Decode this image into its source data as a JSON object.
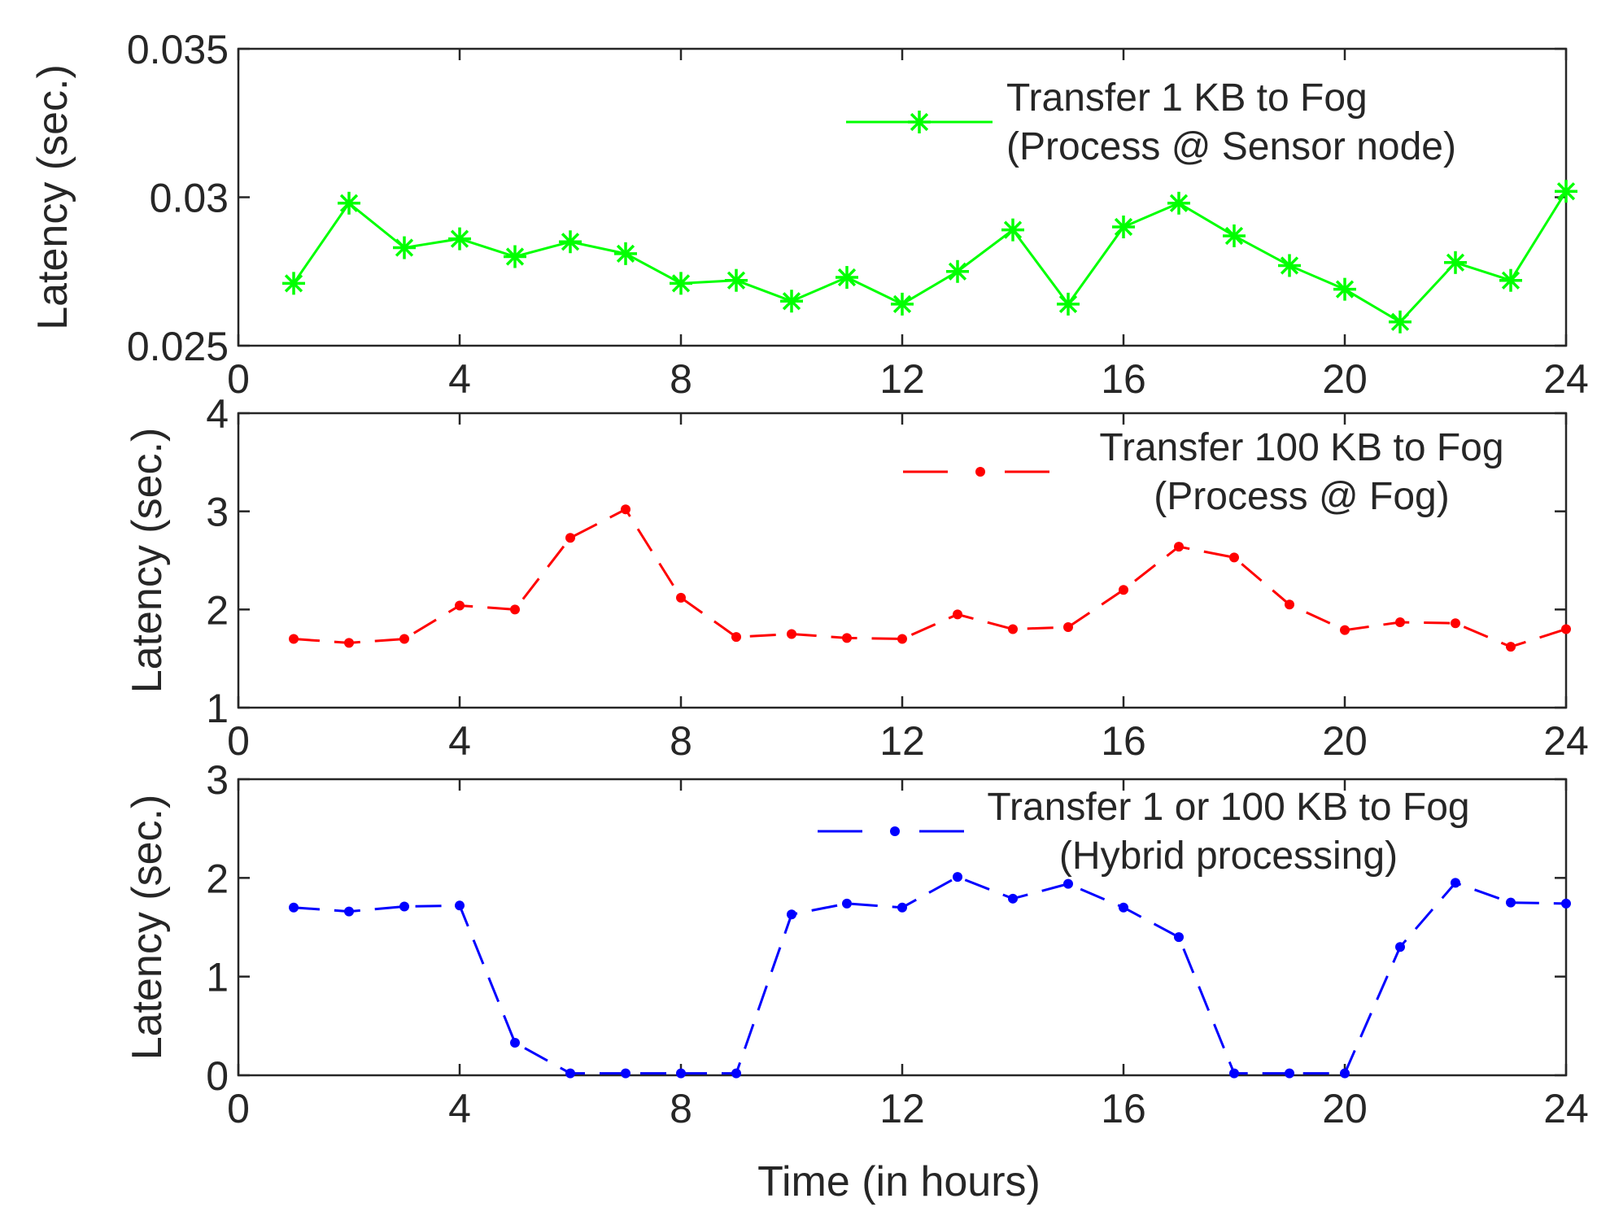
{
  "xlabel": "Time (in hours)",
  "chart_data": [
    {
      "type": "line",
      "ylabel": "Latency (sec.)",
      "xlim": [
        0,
        24
      ],
      "ylim": [
        0.025,
        0.035
      ],
      "xticks": [
        "0",
        "4",
        "8",
        "12",
        "16",
        "20",
        "24"
      ],
      "yticks": [
        "0.025",
        "0.03",
        "0.035"
      ],
      "legend_lines": [
        "Transfer 1 KB to Fog",
        "(Process @ Sensor node)"
      ],
      "legend_position": "top-right",
      "series": [
        {
          "color": "#00ff00",
          "marker": "asterisk",
          "line_style": "solid",
          "x": [
            1,
            2,
            3,
            4,
            5,
            6,
            7,
            8,
            9,
            10,
            11,
            12,
            13,
            14,
            15,
            16,
            17,
            18,
            19,
            20,
            21,
            22,
            23,
            24
          ],
          "y": [
            0.0271,
            0.0298,
            0.0283,
            0.0286,
            0.028,
            0.0285,
            0.0281,
            0.0271,
            0.0272,
            0.0265,
            0.0273,
            0.0264,
            0.0275,
            0.0289,
            0.0264,
            0.029,
            0.0298,
            0.0287,
            0.0277,
            0.0269,
            0.0258,
            0.0278,
            0.0272,
            0.0302
          ]
        }
      ]
    },
    {
      "type": "line",
      "ylabel": "Latency (sec.)",
      "xlim": [
        0,
        24
      ],
      "ylim": [
        1,
        4
      ],
      "xticks": [
        "0",
        "4",
        "8",
        "12",
        "16",
        "20",
        "24"
      ],
      "yticks": [
        "1",
        "2",
        "3",
        "4"
      ],
      "legend_lines": [
        "Transfer 100 KB to Fog",
        "(Process @ Fog)"
      ],
      "legend_position": "top-right",
      "series": [
        {
          "color": "#ff0000",
          "marker": "dot",
          "line_style": "dashed",
          "x": [
            1,
            2,
            3,
            4,
            5,
            6,
            7,
            8,
            9,
            10,
            11,
            12,
            13,
            14,
            15,
            16,
            17,
            18,
            19,
            20,
            21,
            22,
            23,
            24
          ],
          "y": [
            1.7,
            1.66,
            1.7,
            2.04,
            2.0,
            2.73,
            3.02,
            2.12,
            1.72,
            1.75,
            1.71,
            1.7,
            1.95,
            1.8,
            1.82,
            2.2,
            2.64,
            2.53,
            2.05,
            1.79,
            1.87,
            1.86,
            1.62,
            1.8
          ]
        }
      ]
    },
    {
      "type": "line",
      "ylabel": "Latency (sec.)",
      "xlim": [
        0,
        24
      ],
      "ylim": [
        0,
        3
      ],
      "xticks": [
        "0",
        "4",
        "8",
        "12",
        "16",
        "20",
        "24"
      ],
      "yticks": [
        "0",
        "1",
        "2",
        "3"
      ],
      "legend_lines": [
        "Transfer 1 or 100 KB to Fog",
        "(Hybrid processing)"
      ],
      "legend_position": "top-right",
      "series": [
        {
          "color": "#0000ff",
          "marker": "dot",
          "line_style": "dashed",
          "x": [
            1,
            2,
            3,
            4,
            5,
            6,
            7,
            8,
            9,
            10,
            11,
            12,
            13,
            14,
            15,
            16,
            17,
            18,
            19,
            20,
            21,
            22,
            23,
            24
          ],
          "y": [
            1.7,
            1.66,
            1.71,
            1.72,
            0.33,
            0.02,
            0.02,
            0.02,
            0.02,
            1.63,
            1.74,
            1.7,
            2.01,
            1.79,
            1.94,
            1.7,
            1.4,
            0.02,
            0.02,
            0.02,
            1.3,
            1.95,
            1.75,
            1.74
          ]
        }
      ]
    }
  ]
}
